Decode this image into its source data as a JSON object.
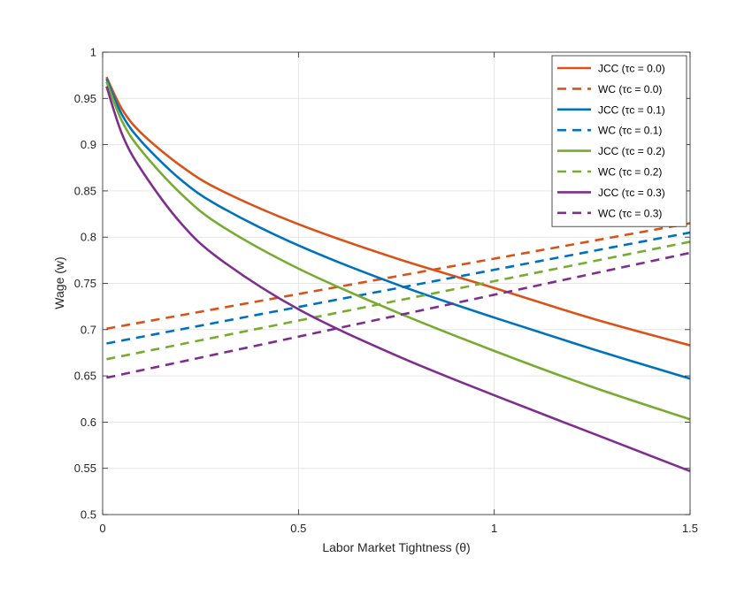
{
  "chart_data": {
    "type": "line",
    "title": "",
    "xlabel": "Labor Market Tightness (θ)",
    "ylabel": "Wage (w)",
    "xlim": [
      0,
      1.5
    ],
    "ylim": [
      0.5,
      1.0
    ],
    "xticks": [
      0,
      0.5,
      1,
      1.5
    ],
    "xtick_labels": [
      "0",
      "0.5",
      "1",
      "1.5"
    ],
    "yticks": [
      0.5,
      0.55,
      0.6,
      0.65,
      0.7,
      0.75,
      0.8,
      0.85,
      0.9,
      0.95,
      1.0
    ],
    "ytick_labels": [
      "0.5",
      "0.55",
      "0.6",
      "0.65",
      "0.7",
      "0.75",
      "0.8",
      "0.85",
      "0.9",
      "0.95",
      "1"
    ],
    "grid": true,
    "legend_position": "top-right",
    "series": [
      {
        "name": "JCC (τc = 0.0)",
        "style": "solid",
        "color": "#D95319",
        "x": [
          0.01,
          0.05,
          0.1,
          0.2,
          0.3,
          0.5,
          0.75,
          1.0,
          1.25,
          1.5
        ],
        "y": [
          0.973,
          0.938,
          0.912,
          0.877,
          0.851,
          0.814,
          0.777,
          0.745,
          0.712,
          0.683
        ]
      },
      {
        "name": "WC (τc = 0.0)",
        "style": "dashed",
        "color": "#D95319",
        "x": [
          0.01,
          1.5
        ],
        "y": [
          0.701,
          0.815
        ]
      },
      {
        "name": "JCC (τc = 0.1)",
        "style": "solid",
        "color": "#0072BD",
        "x": [
          0.01,
          0.05,
          0.1,
          0.2,
          0.3,
          0.5,
          0.75,
          1.0,
          1.25,
          1.5
        ],
        "y": [
          0.971,
          0.932,
          0.903,
          0.862,
          0.833,
          0.791,
          0.749,
          0.713,
          0.679,
          0.647
        ]
      },
      {
        "name": "WC (τc = 0.1)",
        "style": "dashed",
        "color": "#0072BD",
        "x": [
          0.01,
          1.5
        ],
        "y": [
          0.685,
          0.805
        ]
      },
      {
        "name": "JCC (τc = 0.2)",
        "style": "solid",
        "color": "#77AC30",
        "x": [
          0.01,
          0.05,
          0.1,
          0.2,
          0.3,
          0.5,
          0.75,
          1.0,
          1.25,
          1.5
        ],
        "y": [
          0.968,
          0.925,
          0.893,
          0.847,
          0.813,
          0.766,
          0.719,
          0.677,
          0.638,
          0.603
        ]
      },
      {
        "name": "WC (τc = 0.2)",
        "style": "dashed",
        "color": "#77AC30",
        "x": [
          0.01,
          1.5
        ],
        "y": [
          0.668,
          0.795
        ]
      },
      {
        "name": "JCC (τc = 0.3)",
        "style": "solid",
        "color": "#7E2F8E",
        "x": [
          0.01,
          0.05,
          0.1,
          0.2,
          0.3,
          0.5,
          0.75,
          1.0,
          1.25,
          1.5
        ],
        "y": [
          0.963,
          0.911,
          0.872,
          0.815,
          0.776,
          0.722,
          0.672,
          0.629,
          0.588,
          0.547
        ]
      },
      {
        "name": "WC (τc = 0.3)",
        "style": "dashed",
        "color": "#7E2F8E",
        "x": [
          0.01,
          1.5
        ],
        "y": [
          0.648,
          0.783
        ]
      }
    ]
  }
}
